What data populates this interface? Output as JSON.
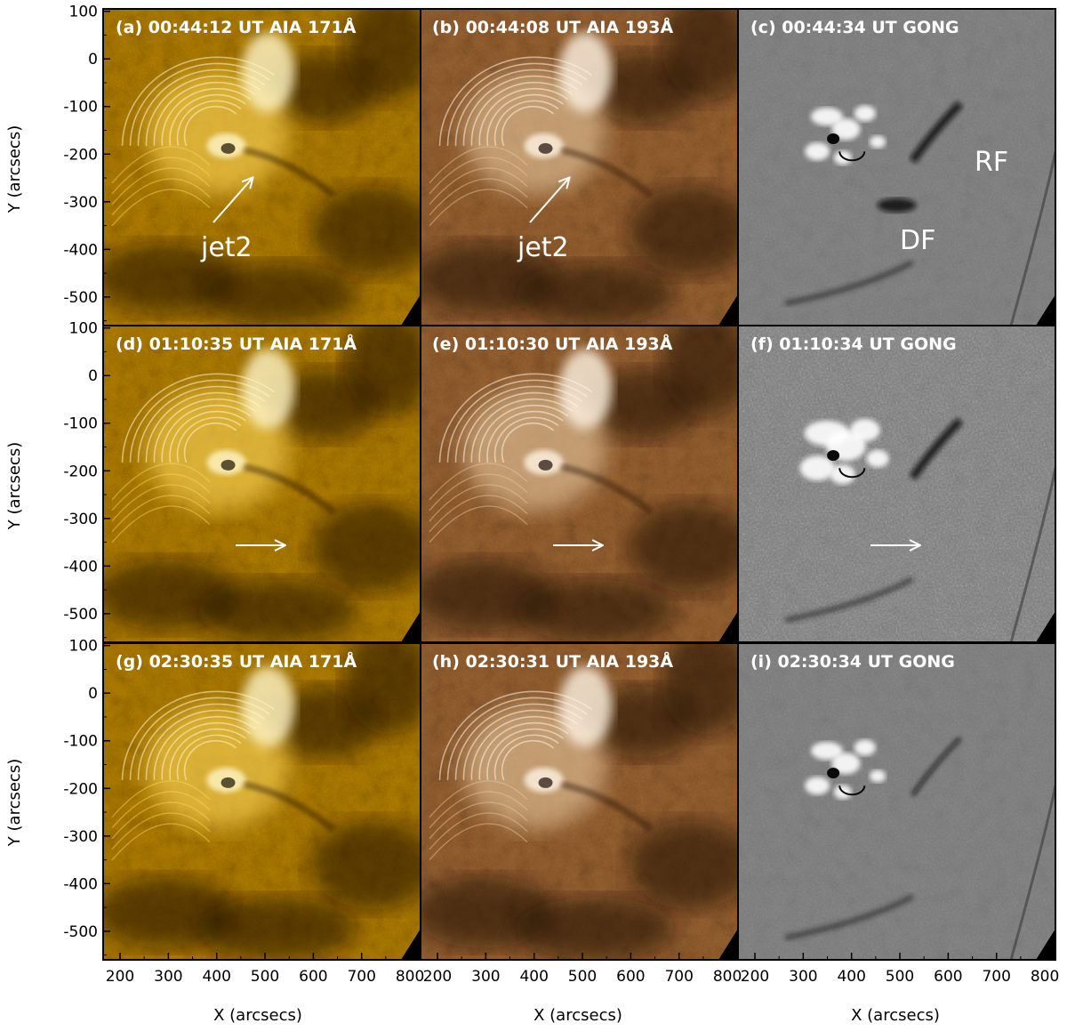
{
  "figure": {
    "x_label": "X (arcsecs)",
    "y_label": "Y (arcsecs)",
    "x_ticks": [
      200,
      300,
      400,
      500,
      600,
      700,
      800
    ],
    "y_ticks": [
      100,
      0,
      -100,
      -200,
      -300,
      -400,
      -500
    ],
    "x_range": [
      165,
      822
    ],
    "y_range": [
      -560,
      105
    ],
    "channels": [
      {
        "name": "AIA 171Å",
        "palette": [
          "#1a0f00",
          "#5c3a00",
          "#a87400",
          "#e0a800",
          "#ffd95a",
          "#fff6c8"
        ]
      },
      {
        "name": "AIA 193Å",
        "palette": [
          "#1c0c04",
          "#5a3214",
          "#8e5a2c",
          "#c0905c",
          "#e8c9a0",
          "#fff4e4"
        ]
      },
      {
        "name": "GONG",
        "palette": [
          "#0a0a0a",
          "#505050",
          "#7c7c7c",
          "#9a9a9a",
          "#d8d8d8",
          "#ffffff"
        ]
      }
    ],
    "panels": [
      {
        "label": "(a) 00:44:12 UT AIA 171Å",
        "row": 0,
        "col": 0
      },
      {
        "label": "(b) 00:44:08 UT AIA 193Å",
        "row": 0,
        "col": 1
      },
      {
        "label": "(c) 00:44:34 UT GONG",
        "row": 0,
        "col": 2
      },
      {
        "label": "(d) 01:10:35 UT AIA 171Å",
        "row": 1,
        "col": 0
      },
      {
        "label": "(e) 01:10:30 UT AIA 193Å",
        "row": 1,
        "col": 1
      },
      {
        "label": "(f) 01:10:34 UT GONG",
        "row": 1,
        "col": 2
      },
      {
        "label": "(g) 02:30:35 UT AIA 171Å",
        "row": 2,
        "col": 0
      },
      {
        "label": "(h) 02:30:31 UT AIA 193Å",
        "row": 2,
        "col": 1
      },
      {
        "label": "(i) 02:30:34 UT GONG",
        "row": 2,
        "col": 2
      }
    ],
    "annotations": {
      "jet_label": "jet2",
      "rf_label": "RF",
      "df_label": "DF"
    }
  }
}
